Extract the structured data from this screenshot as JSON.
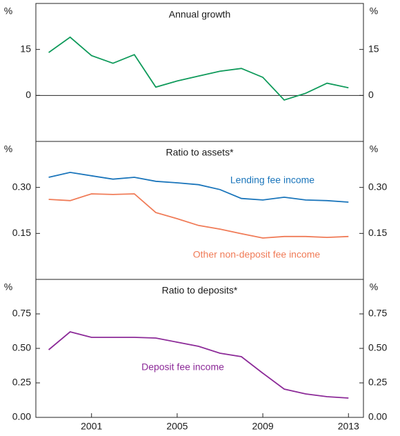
{
  "chart_data": [
    {
      "type": "line",
      "title": "Annual growth",
      "unit": "%",
      "x": [
        1999,
        2000,
        2001,
        2002,
        2003,
        2004,
        2005,
        2006,
        2007,
        2008,
        2009,
        2010,
        2011,
        2012,
        2013
      ],
      "xlim": [
        1998.4,
        2013.7
      ],
      "ylim": [
        -15,
        30
      ],
      "yticks": [
        0,
        15
      ],
      "zero_line": true,
      "series": [
        {
          "name": null,
          "color": "#0e9a5a",
          "values": [
            14,
            19,
            13,
            10.5,
            13.3,
            2.7,
            4.7,
            6.3,
            7.9,
            8.8,
            5.9,
            -1.5,
            0.7,
            4,
            2.5
          ]
        }
      ]
    },
    {
      "type": "line",
      "title": "Ratio to assets*",
      "unit": "%",
      "x": [
        1999,
        2000,
        2001,
        2002,
        2003,
        2004,
        2005,
        2006,
        2007,
        2008,
        2009,
        2010,
        2011,
        2012,
        2013
      ],
      "xlim": [
        1998.4,
        2013.7
      ],
      "ylim": [
        0,
        0.45
      ],
      "yticks": [
        {
          "value": 0.15,
          "label": "0.15"
        },
        {
          "value": 0.3,
          "label": "0.30"
        }
      ],
      "series": [
        {
          "name": "Lending fee income",
          "color": "#1a75bb",
          "values": [
            0.333,
            0.349,
            0.338,
            0.327,
            0.333,
            0.32,
            0.315,
            0.309,
            0.293,
            0.264,
            0.259,
            0.268,
            0.259,
            0.257,
            0.252
          ]
        },
        {
          "name": "Other non-deposit fee income",
          "color": "#f07b57",
          "values": [
            0.261,
            0.257,
            0.279,
            0.277,
            0.279,
            0.218,
            0.198,
            0.176,
            0.164,
            0.149,
            0.135,
            0.14,
            0.14,
            0.137,
            0.14
          ]
        }
      ]
    },
    {
      "type": "line",
      "title": "Ratio to deposits*",
      "unit": "%",
      "x": [
        1999,
        2000,
        2001,
        2002,
        2003,
        2004,
        2005,
        2006,
        2007,
        2008,
        2009,
        2010,
        2011,
        2012,
        2013
      ],
      "xlim": [
        1998.4,
        2013.7
      ],
      "xticks": [
        2001,
        2005,
        2009,
        2013
      ],
      "ylim": [
        0,
        1
      ],
      "yticks": [
        {
          "value": 0,
          "label": "0.00"
        },
        {
          "value": 0.25,
          "label": "0.25"
        },
        {
          "value": 0.5,
          "label": "0.50"
        },
        {
          "value": 0.75,
          "label": "0.75"
        }
      ],
      "series": [
        {
          "name": "Deposit fee income",
          "color": "#8c2a98",
          "values": [
            0.49,
            0.62,
            0.58,
            0.58,
            0.58,
            0.575,
            0.545,
            0.515,
            0.465,
            0.44,
            0.32,
            0.205,
            0.17,
            0.15,
            0.14
          ]
        }
      ]
    }
  ]
}
